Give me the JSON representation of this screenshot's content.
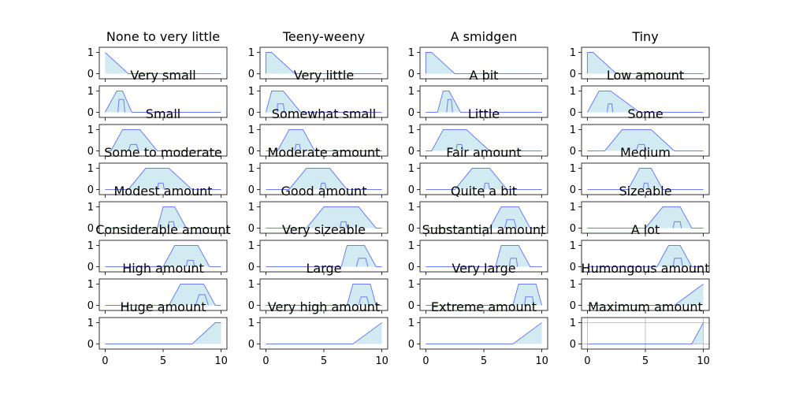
{
  "chart_data": {
    "type": "area",
    "grid_layout": {
      "rows": 8,
      "cols": 4
    },
    "shared_axes": {
      "xlim": [
        0,
        10
      ],
      "ylim": [
        0,
        1
      ],
      "x_ticks": [
        0,
        5,
        10
      ],
      "y_ticks": [
        0,
        1
      ]
    },
    "style": {
      "fill": "#add8e6",
      "line": "#6b7ff2"
    },
    "panels": [
      {
        "title": "None to very little",
        "upper": [
          [
            0,
            1
          ],
          [
            0,
            1
          ],
          [
            2,
            0
          ],
          [
            10,
            0
          ]
        ],
        "lower": [],
        "grid": false
      },
      {
        "title": "Teeny-weeny",
        "upper": [
          [
            0,
            0
          ],
          [
            0,
            1
          ],
          [
            0.5,
            1
          ],
          [
            2.5,
            0
          ],
          [
            10,
            0
          ]
        ],
        "lower": [],
        "grid": false
      },
      {
        "title": "A smidgen",
        "upper": [
          [
            0,
            0
          ],
          [
            0,
            1
          ],
          [
            0.5,
            1
          ],
          [
            2.5,
            0
          ],
          [
            10,
            0
          ]
        ],
        "lower": [],
        "grid": false
      },
      {
        "title": "Tiny",
        "upper": [
          [
            0,
            0
          ],
          [
            0,
            1
          ],
          [
            0.5,
            1
          ],
          [
            2.5,
            0
          ],
          [
            10,
            0
          ]
        ],
        "lower": [],
        "grid": false
      },
      {
        "title": "Very small",
        "upper": [
          [
            0,
            0
          ],
          [
            1,
            1
          ],
          [
            1.5,
            1
          ],
          [
            2.3,
            0
          ],
          [
            10,
            0
          ]
        ],
        "lower": [
          [
            1.1,
            0
          ],
          [
            1.2,
            0.6
          ],
          [
            1.6,
            0.6
          ],
          [
            1.7,
            0
          ]
        ],
        "grid": false
      },
      {
        "title": "Very little",
        "upper": [
          [
            0,
            0
          ],
          [
            0.5,
            1
          ],
          [
            1.5,
            1
          ],
          [
            3,
            0
          ],
          [
            10,
            0
          ]
        ],
        "lower": [
          [
            1,
            0
          ],
          [
            1,
            0.4
          ],
          [
            1.5,
            0.4
          ],
          [
            1.6,
            0
          ]
        ],
        "grid": false
      },
      {
        "title": "A bit",
        "upper": [
          [
            0,
            0
          ],
          [
            1,
            0
          ],
          [
            1.5,
            1
          ],
          [
            2,
            1
          ],
          [
            3,
            0
          ],
          [
            10,
            0
          ]
        ],
        "lower": [
          [
            1.8,
            0
          ],
          [
            1.9,
            0.6
          ],
          [
            2.2,
            0.6
          ],
          [
            2.3,
            0
          ]
        ],
        "grid": false
      },
      {
        "title": "Low amount",
        "upper": [
          [
            0,
            0
          ],
          [
            1,
            1
          ],
          [
            2,
            1
          ],
          [
            4.5,
            0
          ],
          [
            10,
            0
          ]
        ],
        "lower": [
          [
            1.7,
            0
          ],
          [
            1.8,
            0.4
          ],
          [
            2.1,
            0.4
          ],
          [
            2.2,
            0
          ]
        ],
        "grid": false
      },
      {
        "title": "Small",
        "upper": [
          [
            0,
            0
          ],
          [
            0.5,
            0
          ],
          [
            1.5,
            1
          ],
          [
            3,
            1
          ],
          [
            4.5,
            0
          ],
          [
            10,
            0
          ]
        ],
        "lower": [
          [
            2,
            0
          ],
          [
            2.2,
            0.3
          ],
          [
            2.7,
            0.3
          ],
          [
            2.9,
            0
          ]
        ],
        "grid": false
      },
      {
        "title": "Somewhat small",
        "upper": [
          [
            0,
            0
          ],
          [
            1,
            0
          ],
          [
            2,
            1
          ],
          [
            3.2,
            1
          ],
          [
            4.2,
            0
          ],
          [
            10,
            0
          ]
        ],
        "lower": [
          [
            2.5,
            0
          ],
          [
            2.6,
            0.3
          ],
          [
            2.9,
            0.3
          ],
          [
            3,
            0
          ]
        ],
        "grid": false
      },
      {
        "title": "Little",
        "upper": [
          [
            0,
            0
          ],
          [
            0.5,
            0
          ],
          [
            1.5,
            1
          ],
          [
            3.5,
            1
          ],
          [
            5.5,
            0
          ],
          [
            10,
            0
          ]
        ],
        "lower": [
          [
            2.6,
            0
          ],
          [
            2.7,
            0.3
          ],
          [
            3.1,
            0.3
          ],
          [
            3.2,
            0
          ]
        ],
        "grid": false
      },
      {
        "title": "Some",
        "upper": [
          [
            0,
            0
          ],
          [
            1.5,
            0
          ],
          [
            3,
            1
          ],
          [
            5.5,
            1
          ],
          [
            7.5,
            0
          ],
          [
            10,
            0
          ]
        ],
        "lower": [
          [
            4.2,
            0
          ],
          [
            4.4,
            0.3
          ],
          [
            4.9,
            0.3
          ],
          [
            5.1,
            0
          ]
        ],
        "grid": false
      },
      {
        "title": "Some to moderate",
        "upper": [
          [
            0,
            0
          ],
          [
            2,
            0
          ],
          [
            3.5,
            1
          ],
          [
            5.5,
            1
          ],
          [
            7.5,
            0
          ],
          [
            10,
            0
          ]
        ],
        "lower": [
          [
            4.5,
            0
          ],
          [
            4.6,
            0.3
          ],
          [
            5,
            0.3
          ],
          [
            5.1,
            0
          ]
        ],
        "grid": false
      },
      {
        "title": "Moderate amount",
        "upper": [
          [
            0,
            0
          ],
          [
            2,
            0
          ],
          [
            3.5,
            1
          ],
          [
            5.5,
            1
          ],
          [
            7,
            0
          ],
          [
            10,
            0
          ]
        ],
        "lower": [
          [
            4.7,
            0
          ],
          [
            4.8,
            0.3
          ],
          [
            5.1,
            0.3
          ],
          [
            5.2,
            0
          ]
        ],
        "grid": false
      },
      {
        "title": "Fair amount",
        "upper": [
          [
            0,
            0
          ],
          [
            2.5,
            0
          ],
          [
            4,
            1
          ],
          [
            5.5,
            1
          ],
          [
            7,
            0
          ],
          [
            10,
            0
          ]
        ],
        "lower": [
          [
            5,
            0
          ],
          [
            5.1,
            0.3
          ],
          [
            5.4,
            0.3
          ],
          [
            5.5,
            0
          ]
        ],
        "grid": false
      },
      {
        "title": "Medium",
        "upper": [
          [
            0,
            0
          ],
          [
            3.5,
            0
          ],
          [
            4.5,
            1
          ],
          [
            5.5,
            1
          ],
          [
            6.5,
            0
          ],
          [
            10,
            0
          ]
        ],
        "lower": [
          [
            4.8,
            0
          ],
          [
            4.9,
            0.3
          ],
          [
            5.2,
            0.3
          ],
          [
            5.3,
            0
          ]
        ],
        "grid": false
      },
      {
        "title": "Modest amount",
        "upper": [
          [
            0,
            0
          ],
          [
            4.5,
            0
          ],
          [
            5,
            1
          ],
          [
            6,
            1
          ],
          [
            7,
            0
          ],
          [
            10,
            0
          ]
        ],
        "lower": [
          [
            5.4,
            0
          ],
          [
            5.5,
            0.3
          ],
          [
            5.9,
            0.3
          ],
          [
            6,
            0
          ]
        ],
        "grid": false
      },
      {
        "title": "Good amount",
        "upper": [
          [
            0,
            0
          ],
          [
            3.5,
            0
          ],
          [
            5,
            1
          ],
          [
            8,
            1
          ],
          [
            9.5,
            0
          ],
          [
            10,
            0
          ]
        ],
        "lower": [
          [
            6.4,
            0
          ],
          [
            6.5,
            0.3
          ],
          [
            6.9,
            0.3
          ],
          [
            7,
            0
          ]
        ],
        "grid": false
      },
      {
        "title": "Quite a bit",
        "upper": [
          [
            0,
            0
          ],
          [
            5.5,
            0
          ],
          [
            6.5,
            1
          ],
          [
            8,
            1
          ],
          [
            9,
            0
          ],
          [
            10,
            0
          ]
        ],
        "lower": [
          [
            6.8,
            0
          ],
          [
            7,
            0.4
          ],
          [
            7.6,
            0.4
          ],
          [
            7.8,
            0
          ]
        ],
        "grid": false
      },
      {
        "title": "Sizeable",
        "upper": [
          [
            0,
            0
          ],
          [
            5,
            0
          ],
          [
            6.5,
            1
          ],
          [
            8,
            1
          ],
          [
            9,
            0
          ],
          [
            10,
            0
          ]
        ],
        "lower": [
          [
            7.4,
            0
          ],
          [
            7.5,
            0.3
          ],
          [
            8,
            0.3
          ],
          [
            8.1,
            0
          ]
        ],
        "grid": false
      },
      {
        "title": "Considerable amount",
        "upper": [
          [
            0,
            0
          ],
          [
            5,
            0
          ],
          [
            6,
            1
          ],
          [
            8,
            1
          ],
          [
            9,
            0
          ],
          [
            10,
            0
          ]
        ],
        "lower": [
          [
            7,
            0
          ],
          [
            7.1,
            0.3
          ],
          [
            7.6,
            0.3
          ],
          [
            7.7,
            0
          ]
        ],
        "grid": false
      },
      {
        "title": "Very sizeable",
        "upper": [
          [
            0,
            0
          ],
          [
            6.5,
            0
          ],
          [
            7,
            1
          ],
          [
            8.5,
            1
          ],
          [
            9.5,
            0
          ],
          [
            10,
            0
          ]
        ],
        "lower": [
          [
            7.8,
            0
          ],
          [
            8,
            0.4
          ],
          [
            8.6,
            0.4
          ],
          [
            8.8,
            0
          ]
        ],
        "grid": false
      },
      {
        "title": "Substantial amount",
        "upper": [
          [
            0,
            0
          ],
          [
            6,
            0
          ],
          [
            6.5,
            1
          ],
          [
            8,
            1
          ],
          [
            9,
            0
          ],
          [
            10,
            0
          ]
        ],
        "lower": [
          [
            7.2,
            0
          ],
          [
            7.3,
            0.4
          ],
          [
            7.8,
            0.4
          ],
          [
            7.9,
            0
          ]
        ],
        "grid": false
      },
      {
        "title": "A lot",
        "upper": [
          [
            0,
            0
          ],
          [
            6,
            0
          ],
          [
            7,
            1
          ],
          [
            8,
            1
          ],
          [
            9,
            0
          ],
          [
            10,
            0
          ]
        ],
        "lower": [
          [
            7.4,
            0
          ],
          [
            7.5,
            0.4
          ],
          [
            8.1,
            0.4
          ],
          [
            8.2,
            0
          ]
        ],
        "grid": false
      },
      {
        "title": "High amount",
        "upper": [
          [
            0,
            0
          ],
          [
            5.5,
            0
          ],
          [
            6.5,
            1
          ],
          [
            8.5,
            1
          ],
          [
            9.5,
            0
          ],
          [
            10,
            0
          ]
        ],
        "lower": [
          [
            7.8,
            0
          ],
          [
            8.1,
            0.5
          ],
          [
            8.6,
            0.5
          ],
          [
            8.9,
            0
          ]
        ],
        "grid": false
      },
      {
        "title": "Large",
        "upper": [
          [
            0,
            0
          ],
          [
            7,
            0
          ],
          [
            7.5,
            1
          ],
          [
            9,
            1
          ],
          [
            9.5,
            0
          ],
          [
            10,
            0
          ]
        ],
        "lower": [
          [
            8,
            0
          ],
          [
            8.2,
            0.4
          ],
          [
            8.7,
            0.4
          ],
          [
            8.9,
            0
          ]
        ],
        "grid": false
      },
      {
        "title": "Very large",
        "upper": [
          [
            0,
            0
          ],
          [
            7.5,
            0
          ],
          [
            8,
            1
          ],
          [
            9.5,
            1
          ],
          [
            10,
            0
          ]
        ],
        "lower": [
          [
            8.5,
            0
          ],
          [
            8.6,
            0.4
          ],
          [
            9.2,
            0.4
          ],
          [
            9.3,
            0
          ]
        ],
        "grid": false
      },
      {
        "title": "Humongous amount",
        "upper": [
          [
            0,
            0
          ],
          [
            7.5,
            0
          ],
          [
            10,
            1
          ]
        ],
        "lower": [],
        "grid": false
      },
      {
        "title": "Huge amount",
        "upper": [
          [
            0,
            0
          ],
          [
            7.5,
            0
          ],
          [
            9.5,
            1
          ],
          [
            10,
            1
          ]
        ],
        "lower": [],
        "grid": false
      },
      {
        "title": "Very high amount",
        "upper": [
          [
            0,
            0
          ],
          [
            7.5,
            0
          ],
          [
            10,
            1
          ]
        ],
        "lower": [],
        "grid": false
      },
      {
        "title": "Extreme amount",
        "upper": [
          [
            0,
            0
          ],
          [
            7.5,
            0
          ],
          [
            10,
            1
          ]
        ],
        "lower": [],
        "grid": false
      },
      {
        "title": "Maximum amount",
        "upper": [
          [
            0,
            0
          ],
          [
            9,
            0
          ],
          [
            10,
            1
          ]
        ],
        "lower": [],
        "grid": true
      }
    ]
  }
}
